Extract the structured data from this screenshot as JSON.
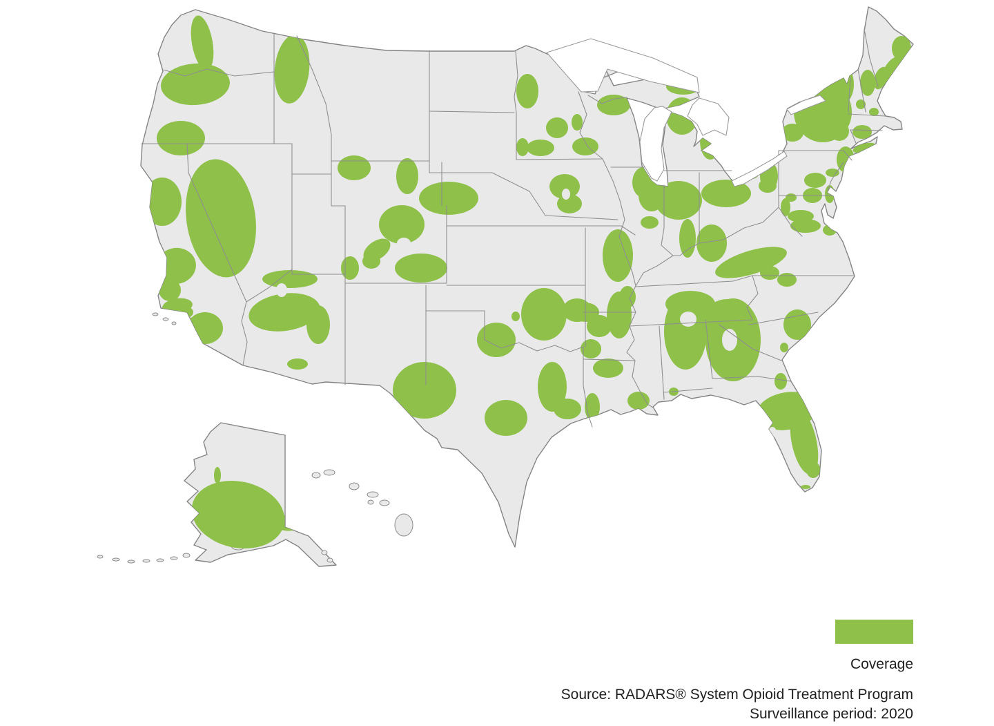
{
  "legend": {
    "label": "Coverage",
    "swatch_color": "#8ec04a"
  },
  "source": {
    "line1": "Source: RADARS® System Opioid Treatment Program",
    "line2": "Surveillance period: 2020"
  },
  "map": {
    "land_color": "#e9e9e9",
    "state_border_color": "#8f8f8f",
    "water_color": "#ffffff",
    "coverage_color": "#8ec04a",
    "coverage_regions": [
      [
        "seattle-wa",
        293,
        62,
        15,
        40,
        -10
      ],
      [
        "portland-nw-or",
        283,
        122,
        50,
        30,
        -4
      ],
      [
        "medford-or",
        262,
        200,
        35,
        25,
        0
      ],
      [
        "north-idaho",
        423,
        100,
        25,
        50,
        6
      ],
      [
        "billings-mt",
        513,
        243,
        24,
        18,
        0
      ],
      [
        "casper-wy",
        590,
        255,
        16,
        26,
        0
      ],
      [
        "cheyenne-scottsbluff",
        650,
        287,
        43,
        24,
        0
      ],
      [
        "nevada",
        320,
        316,
        50,
        86,
        -8
      ],
      [
        "sacramento-ca",
        235,
        292,
        28,
        35,
        0
      ],
      [
        "bay-area-ca",
        255,
        385,
        29,
        26,
        -10
      ],
      [
        "central-coast-ca",
        246,
        420,
        16,
        16,
        0
      ],
      [
        "los-angeles-ca",
        257,
        443,
        22,
        11,
        -8
      ],
      [
        "la-inland-ca",
        270,
        452,
        10,
        8,
        0
      ],
      [
        "san-diego-inland-ca",
        297,
        475,
        26,
        23,
        0
      ],
      [
        "grand-junction-co",
        507,
        388,
        13,
        17,
        0
      ],
      [
        "durango-co",
        538,
        378,
        13,
        11,
        0
      ],
      [
        "az-north",
        420,
        404,
        40,
        13,
        0
      ],
      [
        "az-phoenix",
        412,
        452,
        52,
        27,
        -8
      ],
      [
        "az-east",
        461,
        470,
        17,
        28,
        0
      ],
      [
        "tucson-az",
        431,
        527,
        15,
        8,
        0
      ],
      [
        "denver-co",
        582,
        325,
        33,
        28,
        0
      ],
      [
        "co-southwest",
        546,
        362,
        22,
        13,
        -35
      ],
      [
        "co-south",
        610,
        388,
        38,
        21,
        0
      ],
      [
        "okc-ok",
        788,
        455,
        33,
        38,
        0
      ],
      [
        "wichita-falls-tx",
        719,
        492,
        28,
        25,
        0
      ],
      [
        "duncan-ok",
        747,
        458,
        6,
        7,
        0
      ],
      [
        "tulsa-ok",
        848,
        452,
        20,
        14,
        0
      ],
      [
        "eastern-ok",
        868,
        472,
        18,
        16,
        0
      ],
      [
        "ne-arkansas",
        897,
        456,
        18,
        34,
        0
      ],
      [
        "little-rock-ar",
        856,
        505,
        15,
        14,
        0
      ],
      [
        "monroe-la",
        881,
        533,
        22,
        14,
        0
      ],
      [
        "baton-rouge-new-orleans-la",
        925,
        580,
        16,
        13,
        0
      ],
      [
        "west-texas",
        615,
        565,
        46,
        41,
        0
      ],
      [
        "austin-san-antonio-tx",
        733,
        605,
        31,
        26,
        0
      ],
      [
        "houston-tx",
        800,
        560,
        21,
        36,
        0
      ],
      [
        "houston-coast-tx",
        822,
        592,
        20,
        15,
        0
      ],
      [
        "beaumont-tx",
        858,
        589,
        11,
        20,
        0
      ],
      [
        "fargo-moorhead-mn",
        764,
        132,
        16,
        25,
        0
      ],
      [
        "mankato-mn",
        757,
        213,
        9,
        13,
        0
      ],
      [
        "rochester-mn",
        783,
        214,
        20,
        12,
        0
      ],
      [
        "la-crosse-wi",
        807,
        185,
        16,
        15,
        0
      ],
      [
        "eau-claire-wi",
        836,
        177,
        8,
        12,
        0
      ],
      [
        "madison-wi",
        848,
        212,
        19,
        13,
        0
      ],
      [
        "green-bay-wi",
        889,
        152,
        24,
        15,
        0
      ],
      [
        "des-moines-ia",
        818,
        270,
        22,
        18,
        0
      ],
      [
        "des-moines-south-ia",
        825,
        295,
        18,
        14,
        0
      ],
      [
        "rockford-nw-il",
        932,
        264,
        16,
        22,
        0
      ],
      [
        "northern-indiana",
        983,
        290,
        34,
        28,
        0
      ],
      [
        "columbus-dayton-oh",
        1052,
        280,
        36,
        20,
        0
      ],
      [
        "ne-ohio",
        1112,
        269,
        13,
        10,
        0
      ],
      [
        "mi-upper-peninsula",
        990,
        125,
        25,
        12,
        0
      ],
      [
        "traverse-city-mi",
        988,
        168,
        23,
        27,
        0
      ],
      [
        "saginaw-flint-mi",
        1029,
        204,
        15,
        27,
        0
      ],
      [
        "central-il",
        985,
        308,
        12,
        8,
        0
      ],
      [
        "southern-il",
        941,
        322,
        13,
        9,
        0
      ],
      [
        "missouri-east",
        895,
        370,
        22,
        38,
        0
      ],
      [
        "springfield-mo",
        836,
        449,
        21,
        17,
        0
      ],
      [
        "memphis-tn",
        909,
        430,
        12,
        16,
        0
      ],
      [
        "indianapolis-in",
        944,
        283,
        19,
        23,
        0
      ],
      [
        "cincinnati-louisville",
        996,
        345,
        12,
        28,
        0
      ],
      [
        "lexington-ky",
        1031,
        352,
        22,
        27,
        0
      ],
      [
        "charleston-wv",
        1138,
        300,
        7,
        13,
        0
      ],
      [
        "appalachia-band",
        1088,
        380,
        54,
        17,
        -17
      ],
      [
        "roanoke-va",
        1167,
        327,
        22,
        10,
        0
      ],
      [
        "richmond-va",
        1202,
        333,
        10,
        8,
        0
      ],
      [
        "nashville-tn",
        1000,
        440,
        36,
        19,
        0
      ],
      [
        "knoxville-asheville",
        1054,
        462,
        35,
        29,
        0
      ],
      [
        "nc-piedmont-1",
        1115,
        395,
        14,
        10,
        0
      ],
      [
        "nc-piedmont-2",
        1140,
        405,
        14,
        10,
        0
      ],
      [
        "coastal-carolinas",
        1155,
        470,
        20,
        22,
        0
      ],
      [
        "savannah-ga",
        1136,
        503,
        6,
        7,
        0
      ],
      [
        "georgia",
        1062,
        492,
        40,
        60,
        0
      ],
      [
        "alabama",
        993,
        480,
        31,
        55,
        0
      ],
      [
        "mobile-al",
        976,
        567,
        7,
        6,
        0
      ],
      [
        "jacksonville-fl",
        1131,
        552,
        9,
        12,
        0
      ],
      [
        "north-florida",
        1140,
        595,
        45,
        27,
        -10
      ],
      [
        "florida-east-strip",
        1165,
        640,
        18,
        48,
        -12
      ],
      [
        "south-florida",
        1178,
        680,
        10,
        12,
        0
      ],
      [
        "florida-keys",
        1167,
        705,
        7,
        3,
        0
      ],
      [
        "bangor-me",
        1306,
        70,
        14,
        18,
        0
      ],
      [
        "maine-coast",
        1292,
        102,
        11,
        22,
        30
      ],
      [
        "portland-me",
        1276,
        113,
        9,
        17,
        20
      ],
      [
        "vermont",
        1222,
        122,
        15,
        27,
        0
      ],
      [
        "concord-nh",
        1257,
        120,
        11,
        19,
        0
      ],
      [
        "adirondacks-upstate-ny",
        1192,
        162,
        42,
        44,
        0
      ],
      [
        "watertown-ny",
        1148,
        192,
        16,
        13,
        0
      ],
      [
        "binghamton-ny",
        1119,
        208,
        11,
        9,
        0
      ],
      [
        "hudson-valley-ny",
        1216,
        190,
        14,
        14,
        0
      ],
      [
        "hartford-ct",
        1249,
        191,
        14,
        10,
        0
      ],
      [
        "springfield-ma",
        1247,
        151,
        7,
        7,
        0
      ],
      [
        "worcester-boston-ma",
        1266,
        162,
        7,
        6,
        0
      ],
      [
        "long-island-ny",
        1252,
        214,
        17,
        6,
        -15
      ],
      [
        "nyc-north-jersey",
        1225,
        231,
        13,
        19,
        0
      ],
      [
        "south-jersey",
        1228,
        244,
        7,
        11,
        0
      ],
      [
        "philadelphia-pa",
        1206,
        250,
        10,
        6,
        0
      ],
      [
        "allentown-reading-pa",
        1181,
        261,
        16,
        11,
        0
      ],
      [
        "nw-pa",
        1090,
        246,
        11,
        13,
        0
      ],
      [
        "central-pa",
        1114,
        255,
        13,
        21,
        0
      ],
      [
        "pittsburgh-pa",
        1177,
        283,
        14,
        11,
        0
      ],
      [
        "delmarva",
        1202,
        281,
        7,
        13,
        0
      ],
      [
        "western-md",
        1146,
        286,
        8,
        6,
        0
      ],
      [
        "baltimore-dc",
        1160,
        313,
        19,
        9,
        0
      ],
      [
        "alaska-southwest",
        345,
        745,
        68,
        48,
        12
      ],
      [
        "alaska-anchorage",
        413,
        757,
        22,
        11,
        10
      ],
      [
        "alaska-kodiak",
        337,
        785,
        10,
        7,
        0
      ],
      [
        "aleutians-1",
        285,
        799,
        7,
        4,
        0
      ],
      [
        "aleutians-2",
        262,
        806,
        6,
        3,
        0
      ],
      [
        "aleutians-3",
        235,
        812,
        6,
        3,
        0
      ],
      [
        "alaska-finger",
        315,
        688,
        5,
        12,
        0
      ]
    ],
    "coverage_holes": [
      [
        "az-hole",
        408,
        420,
        8,
        10,
        0
      ],
      [
        "co-hole",
        585,
        352,
        10,
        8,
        0
      ],
      [
        "iowa-hole",
        820,
        281,
        6,
        8,
        0
      ],
      [
        "georgia-hole",
        1057,
        492,
        11,
        16,
        0
      ],
      [
        "alabama-hole",
        997,
        462,
        12,
        11,
        0
      ],
      [
        "tampa-bay-hole",
        1119,
        626,
        6,
        8,
        0
      ]
    ]
  }
}
